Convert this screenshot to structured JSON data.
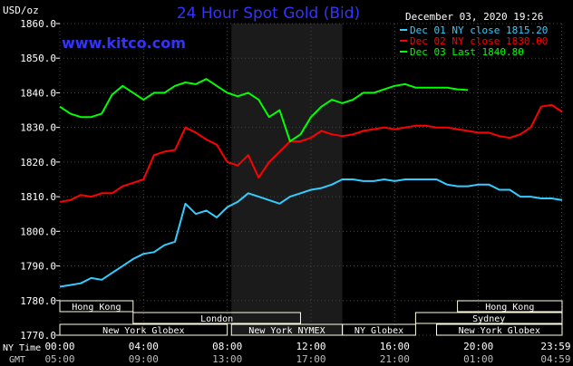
{
  "chart_data": {
    "type": "line",
    "title": "24 Hour Spot Gold (Bid)",
    "subtitle": "www.kitco.com",
    "timestamp": "December 03, 2020 19:26",
    "ylabel": "USD/oz",
    "ylim": [
      1770,
      1860
    ],
    "y_ticks": [
      "1860.0",
      "1850.0",
      "1840.0",
      "1830.0",
      "1820.0",
      "1810.0",
      "1800.0",
      "1790.0",
      "1780.0",
      "1770.0"
    ],
    "y_tick_values": [
      1860,
      1850,
      1840,
      1830,
      1820,
      1810,
      1800,
      1790,
      1780,
      1770
    ],
    "x_label_top": "NY Time",
    "x_label_bottom": "GMT",
    "x_ticks_ny": [
      "00:00",
      "04:00",
      "08:00",
      "12:00",
      "16:00",
      "20:00",
      "23:59"
    ],
    "x_ticks_gmt": [
      "05:00",
      "09:00",
      "13:00",
      "17:00",
      "21:00",
      "01:00",
      "04:59"
    ],
    "x_tick_hours": [
      0,
      4,
      8,
      12,
      16,
      20,
      23.98
    ],
    "grid": true,
    "legend_position": "top-right",
    "series": [
      {
        "name": "Dec 01 NY close 1815.20",
        "color": "#33ccff",
        "x": [
          0,
          0.5,
          1,
          1.5,
          2,
          2.5,
          3,
          3.5,
          4,
          4.5,
          5,
          5.5,
          6,
          6.5,
          7,
          7.5,
          8,
          8.5,
          9,
          9.5,
          10,
          10.5,
          11,
          11.5,
          12,
          12.5,
          13,
          13.5,
          14,
          14.5,
          15,
          15.5,
          16,
          16.5,
          17,
          17.5,
          18,
          18.5,
          19,
          19.5,
          20,
          20.5,
          21,
          21.5,
          22,
          22.5,
          23,
          23.5,
          24
        ],
        "values": [
          1784,
          1784.5,
          1785,
          1786.5,
          1786,
          1788,
          1790,
          1792,
          1793.5,
          1794,
          1796,
          1797,
          1808,
          1805,
          1806,
          1804,
          1807,
          1808.5,
          1811,
          1810,
          1809,
          1808,
          1810,
          1811,
          1812,
          1812.5,
          1813.5,
          1815,
          1815,
          1814.5,
          1814.5,
          1815,
          1814.5,
          1815,
          1815,
          1815,
          1815,
          1813.5,
          1813,
          1813,
          1813.5,
          1813.5,
          1812,
          1812,
          1810,
          1810,
          1809.5,
          1809.5,
          1809
        ]
      },
      {
        "name": "Dec 02 NY close 1830.00",
        "color": "#ff0000",
        "x": [
          0,
          0.5,
          1,
          1.5,
          2,
          2.5,
          3,
          3.5,
          4,
          4.5,
          5,
          5.5,
          6,
          6.5,
          7,
          7.5,
          8,
          8.5,
          9,
          9.5,
          10,
          10.5,
          11,
          11.5,
          12,
          12.5,
          13,
          13.5,
          14,
          14.5,
          15,
          15.5,
          16,
          16.5,
          17,
          17.5,
          18,
          18.5,
          19,
          19.5,
          20,
          20.5,
          21,
          21.5,
          22,
          22.5,
          23,
          23.5,
          24
        ],
        "values": [
          1808.5,
          1809,
          1810.5,
          1810,
          1811,
          1811,
          1813,
          1814,
          1815,
          1822,
          1823,
          1823.5,
          1830,
          1828.5,
          1826.5,
          1825,
          1820,
          1819,
          1822,
          1815.5,
          1820,
          1823,
          1826,
          1826,
          1827,
          1829,
          1828,
          1827.5,
          1828,
          1829,
          1829.5,
          1830,
          1829.5,
          1830,
          1830.5,
          1830.5,
          1830,
          1830,
          1829.5,
          1829,
          1828.5,
          1828.5,
          1827.5,
          1827,
          1828,
          1830,
          1836,
          1836.5,
          1834.5
        ]
      },
      {
        "name": "Dec 03 Last 1840.80",
        "color": "#00ff00",
        "x": [
          0,
          0.5,
          1,
          1.5,
          2,
          2.5,
          3,
          3.5,
          4,
          4.5,
          5,
          5.5,
          6,
          6.5,
          7,
          7.5,
          8,
          8.5,
          9,
          9.5,
          10,
          10.5,
          11,
          11.5,
          12,
          12.5,
          13,
          13.5,
          14,
          14.5,
          15,
          15.5,
          16,
          16.5,
          17,
          17.5,
          18,
          18.5,
          19,
          19.5
        ],
        "values": [
          1836,
          1834,
          1833,
          1833,
          1834,
          1839.5,
          1842,
          1840,
          1838,
          1840,
          1840,
          1842,
          1843,
          1842.5,
          1844,
          1842,
          1840,
          1839,
          1840,
          1838,
          1833,
          1835,
          1826,
          1828,
          1833,
          1836,
          1838,
          1837,
          1838,
          1840,
          1840,
          1841,
          1842,
          1842.5,
          1841.5,
          1841.5,
          1841.5,
          1841.5,
          1841,
          1840.8
        ]
      }
    ],
    "sessions": [
      {
        "label": "Hong Kong",
        "start": 0,
        "end": 3.5,
        "row": 0
      },
      {
        "label": "London",
        "start": 3.5,
        "end": 11.5,
        "row": 1
      },
      {
        "label": "New York Globex",
        "start": 0,
        "end": 8,
        "row": 2
      },
      {
        "label": "New York NYMEX",
        "start": 8.2,
        "end": 13.5,
        "row": 2
      },
      {
        "label": "NY Globex",
        "start": 13.5,
        "end": 17,
        "row": 2
      },
      {
        "label": "Hong Kong",
        "start": 19,
        "end": 24,
        "row": 0
      },
      {
        "label": "Sydney",
        "start": 17,
        "end": 24,
        "row": 1
      },
      {
        "label": "New York Globex",
        "start": 18,
        "end": 24,
        "row": 2
      }
    ],
    "highlight_band": {
      "start": 8.2,
      "end": 13.5
    }
  },
  "colors": {
    "background": "#000000",
    "plot_background": "#000000",
    "highlight_band": "#1b1b1b",
    "grid": "#444444",
    "axis_text": "#ffffff",
    "title": "#3333ff",
    "subtitle": "#3333ff",
    "session_box": "#ffffe0"
  }
}
